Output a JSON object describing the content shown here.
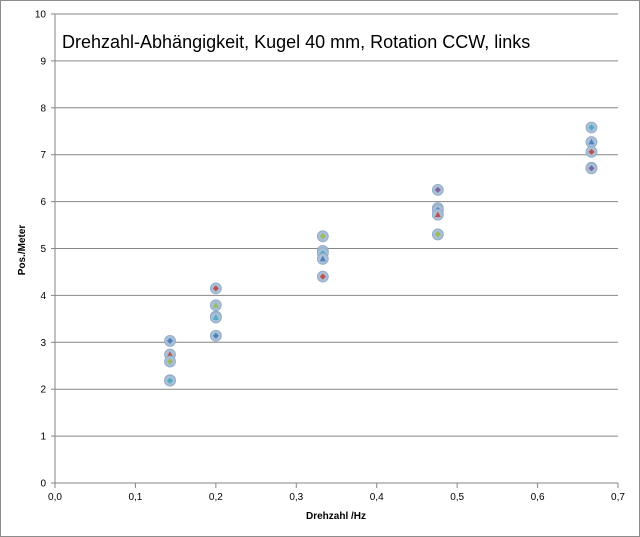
{
  "chart_data": {
    "type": "scatter",
    "title": "Drehzahl-Abhängigkeit,  Kugel 40 mm, Rotation CCW,  links",
    "xlabel": "Drehzahl /Hz",
    "ylabel": "Pos./Meter",
    "xlim": [
      0,
      0.7
    ],
    "ylim": [
      0,
      10
    ],
    "x_ticks": [
      "0,0",
      "0,1",
      "0,2",
      "0,3",
      "0,4",
      "0,5",
      "0,6",
      "0,7"
    ],
    "y_ticks": [
      "0",
      "1",
      "2",
      "3",
      "4",
      "5",
      "6",
      "7",
      "8",
      "9",
      "10"
    ],
    "grid": "horizontal",
    "legend": "none",
    "colors": {
      "halo": "#a9bfd6",
      "series": [
        "#4f81bd",
        "#c0504d",
        "#9bbb59",
        "#8064a2",
        "#4bacc6"
      ]
    },
    "series": [
      {
        "x": [
          0.143,
          0.143,
          0.143,
          0.143,
          0.143
        ],
        "y": [
          3.03,
          2.74,
          2.59,
          2.19,
          2.18
        ]
      },
      {
        "x": [
          0.2,
          0.2,
          0.2,
          0.2,
          0.2
        ],
        "y": [
          4.15,
          3.79,
          3.55,
          3.53,
          3.14
        ]
      },
      {
        "x": [
          0.333,
          0.333,
          0.333,
          0.333,
          0.333
        ],
        "y": [
          5.26,
          4.95,
          4.9,
          4.78,
          4.4
        ]
      },
      {
        "x": [
          0.476,
          0.476,
          0.476,
          0.476,
          0.476
        ],
        "y": [
          6.25,
          5.86,
          5.82,
          5.72,
          5.3
        ]
      },
      {
        "x": [
          0.667,
          0.667,
          0.667,
          0.667,
          0.667
        ],
        "y": [
          7.58,
          7.27,
          7.06,
          6.72,
          6.71
        ]
      }
    ]
  }
}
